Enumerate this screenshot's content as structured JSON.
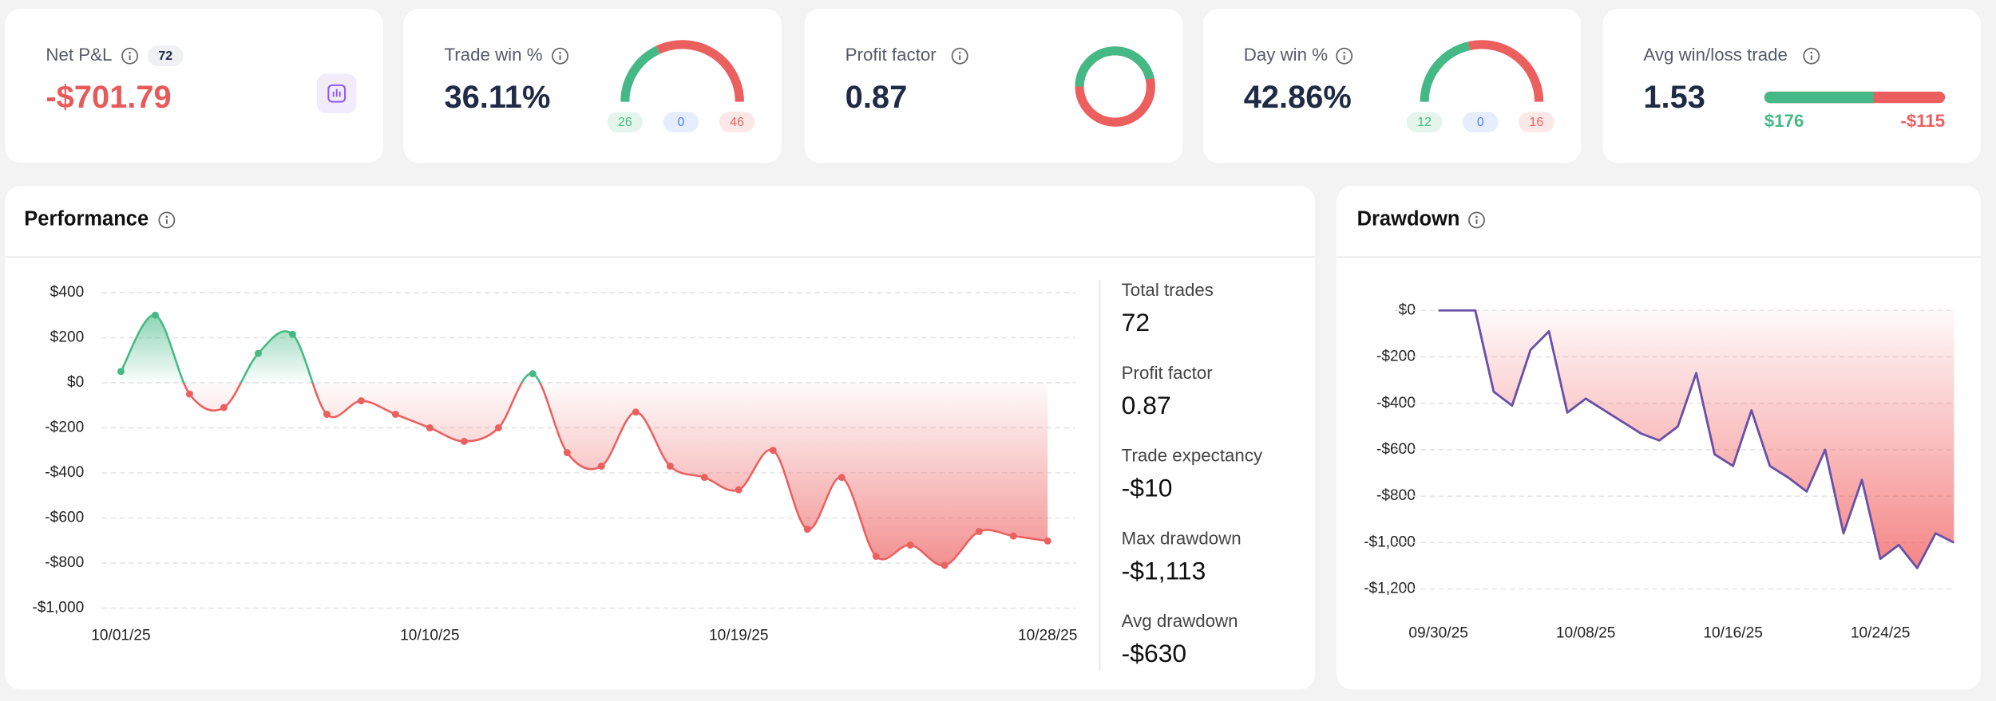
{
  "cards": [
    {
      "title": "Net P&L",
      "badge": 72,
      "value": "-$701.79"
    },
    {
      "title": "Trade win %",
      "value": "36.11%",
      "gauge": [
        26,
        0,
        46
      ]
    },
    {
      "title": "Profit factor",
      "value": 0.87
    },
    {
      "title": "Day win %",
      "value": "42.86%",
      "gauge": [
        12,
        0,
        16
      ]
    },
    {
      "title": "Avg win/loss trade",
      "value": 1.53,
      "win": {
        "value": 176,
        "label": "$176"
      },
      "loss": {
        "value": -115,
        "label": "-$115"
      }
    }
  ],
  "chart_data": [
    {
      "type": "line",
      "title": "Performance",
      "categories": [
        "10/01/25",
        null,
        null,
        null,
        null,
        null,
        null,
        null,
        null,
        "10/10/25",
        null,
        null,
        null,
        null,
        null,
        null,
        null,
        null,
        "10/19/25",
        null,
        null,
        null,
        null,
        null,
        null,
        null,
        null,
        "10/28/25"
      ],
      "values": [
        50,
        300,
        -50,
        -110,
        130,
        215,
        -140,
        -80,
        -140,
        -200,
        -260,
        -200,
        40,
        -310,
        -370,
        -130,
        -370,
        -420,
        -475,
        -300,
        -650,
        -420,
        -770,
        -720,
        -810,
        -660,
        -680,
        -702
      ],
      "up_color": "#45b985",
      "down_color": "#ec5f5f",
      "ylim": [
        -1000,
        400
      ],
      "yticks": [
        {
          "value": 400,
          "label": "$400"
        },
        {
          "value": 200,
          "label": "$200"
        },
        {
          "value": 0,
          "label": "$0"
        },
        {
          "value": -200,
          "label": "-$200"
        },
        {
          "value": -400,
          "label": "-$400"
        },
        {
          "value": -600,
          "label": "-$600"
        },
        {
          "value": -800,
          "label": "-$800"
        },
        {
          "value": -1000,
          "label": "-$1,000"
        }
      ],
      "grid": true
    },
    {
      "type": "area",
      "title": "Drawdown",
      "categories": [
        "09/30/25",
        null,
        null,
        null,
        null,
        null,
        null,
        null,
        "10/08/25",
        null,
        null,
        null,
        null,
        null,
        null,
        null,
        "10/16/25",
        null,
        null,
        null,
        null,
        null,
        null,
        null,
        "10/24/25",
        null,
        null,
        null,
        null
      ],
      "values": [
        0,
        0,
        0,
        -350,
        -410,
        -170,
        -90,
        -440,
        -380,
        -430,
        -480,
        -530,
        -560,
        -500,
        -270,
        -620,
        -670,
        -430,
        -670,
        -720,
        -780,
        -600,
        -960,
        -730,
        -1070,
        -1010,
        -1110,
        -960,
        -1000
      ],
      "color": "#6a50a7",
      "fill": "#ef4444",
      "ylim": [
        -1200,
        0
      ],
      "yticks": [
        {
          "value": 0,
          "label": "$0"
        },
        {
          "value": -200,
          "label": "-$200"
        },
        {
          "value": -400,
          "label": "-$400"
        },
        {
          "value": -600,
          "label": "-$600"
        },
        {
          "value": -800,
          "label": "-$800"
        },
        {
          "value": -1000,
          "label": "-$1,000"
        },
        {
          "value": -1200,
          "label": "-$1,200"
        }
      ],
      "grid": true
    }
  ],
  "stats": [
    {
      "label": "Total trades",
      "value": 72
    },
    {
      "label": "Profit factor",
      "value": 0.87
    },
    {
      "label": "Trade expectancy",
      "value": "-$10"
    },
    {
      "label": "Max drawdown",
      "value": "-$1,113"
    },
    {
      "label": "Avg drawdown",
      "value": "-$630"
    }
  ]
}
